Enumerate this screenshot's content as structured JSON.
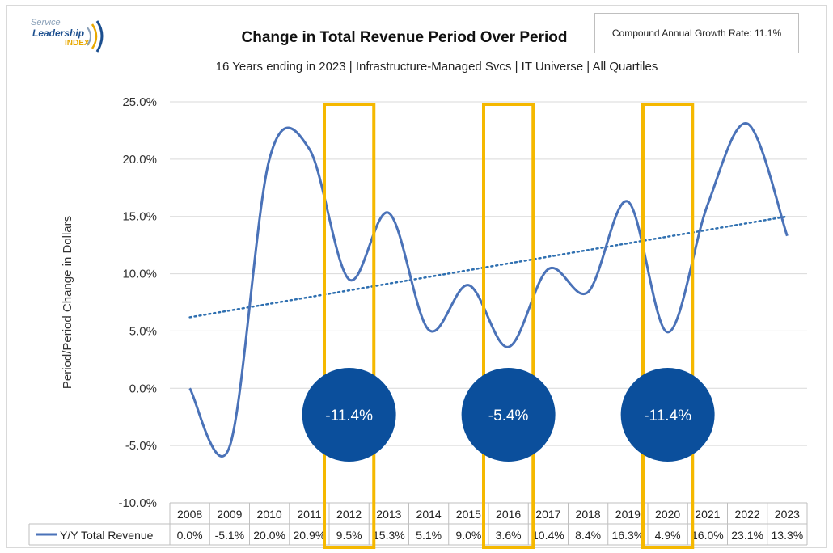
{
  "header": {
    "logo_line1": "Service",
    "logo_line2": "Leadership",
    "logo_line3": "INDEX",
    "title": "Change in Total Revenue Period Over Period",
    "subtitle": "16 Years ending in 2023 |  Infrastructure-Managed  Svcs | IT Universe | All Quartiles",
    "cagr_label": "Compound Annual Growth Rate: 11.1%"
  },
  "chart_data": {
    "type": "line",
    "title": "Change in Total Revenue Period Over Period",
    "subtitle": "16 Years ending in 2023 |  Infrastructure-Managed  Svcs | IT Universe | All Quartiles",
    "ylabel": "Period/Period Change in Dollars",
    "ylim": [
      -10,
      25
    ],
    "yticks": [
      "25.0%",
      "20.0%",
      "15.0%",
      "10.0%",
      "5.0%",
      "0.0%",
      "-5.0%",
      "-10.0%"
    ],
    "categories": [
      "2008",
      "2009",
      "2010",
      "2011",
      "2012",
      "2013",
      "2014",
      "2015",
      "2016",
      "2017",
      "2018",
      "2019",
      "2020",
      "2021",
      "2022",
      "2023"
    ],
    "series": [
      {
        "name": "Y/Y Total Revenue",
        "color": "#4a72b8",
        "values": [
          0.0,
          -5.1,
          20.0,
          20.9,
          9.5,
          15.3,
          5.1,
          9.0,
          3.6,
          10.4,
          8.4,
          16.3,
          4.9,
          16.0,
          23.1,
          13.3
        ],
        "labels": [
          "0.0%",
          "-5.1%",
          "20.0%",
          "20.9%",
          "9.5%",
          "15.3%",
          "5.1%",
          "9.0%",
          "3.6%",
          "10.4%",
          "8.4%",
          "16.3%",
          "4.9%",
          "16.0%",
          "23.1%",
          "13.3%"
        ]
      }
    ],
    "trendline": {
      "style": "dotted",
      "color": "#2e6fb0",
      "start": 6.2,
      "end": 15.0
    },
    "highlights": [
      {
        "year": "2012",
        "badge": "-11.4%"
      },
      {
        "year": "2016",
        "badge": "-5.4%"
      },
      {
        "year": "2020",
        "badge": "-11.4%"
      }
    ],
    "highlight_color": "#f5b800",
    "badge_color": "#0b4f9c",
    "grid": true,
    "legend": "bottom-left data table"
  }
}
